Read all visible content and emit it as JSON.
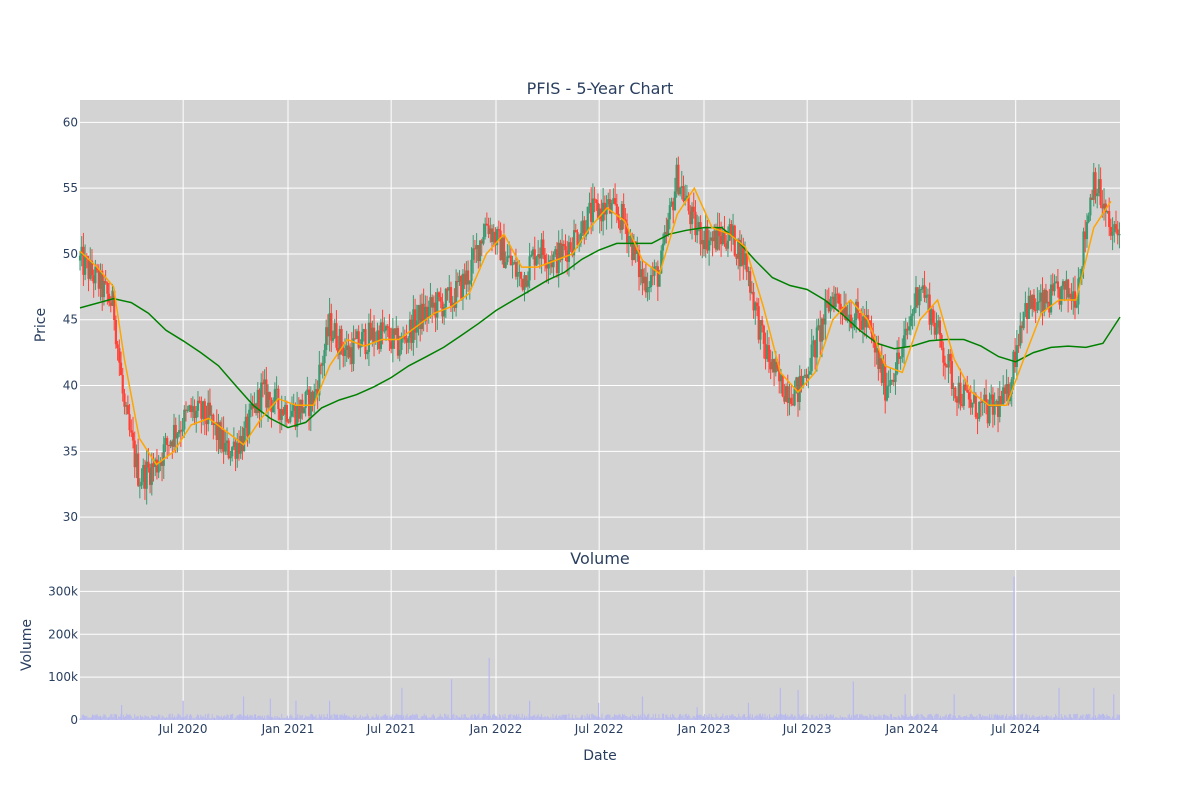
{
  "chart_data": [
    {
      "type": "candlestick",
      "title": "PFIS - 5-Year Chart",
      "ylabel": "Price",
      "ylim": [
        27.5,
        61.7
      ],
      "yticks": [
        30,
        35,
        40,
        45,
        50,
        55,
        60
      ],
      "background": "#d3d3d3",
      "grid": true,
      "colors": {
        "up": "#3d9970",
        "down": "#ff4136",
        "ma_short": "#ffa500",
        "ma_long": "#008000"
      },
      "close_approx": {
        "x": [
          "2020-01-02",
          "2020-02-01",
          "2020-03-01",
          "2020-03-20",
          "2020-04-15",
          "2020-05-15",
          "2020-06-15",
          "2020-07-15",
          "2020-08-15",
          "2020-09-15",
          "2020-10-15",
          "2020-11-15",
          "2020-12-15",
          "2021-01-15",
          "2021-02-15",
          "2021-03-15",
          "2021-04-15",
          "2021-05-15",
          "2021-06-15",
          "2021-07-15",
          "2021-08-15",
          "2021-09-15",
          "2021-10-15",
          "2021-11-15",
          "2021-12-15",
          "2022-01-15",
          "2022-02-15",
          "2022-03-15",
          "2022-04-15",
          "2022-05-15",
          "2022-06-15",
          "2022-07-15",
          "2022-08-15",
          "2022-09-15",
          "2022-10-15",
          "2022-11-15",
          "2022-12-15",
          "2023-01-15",
          "2023-02-15",
          "2023-03-15",
          "2023-04-15",
          "2023-05-15",
          "2023-06-15",
          "2023-07-15",
          "2023-08-15",
          "2023-09-15",
          "2023-10-15",
          "2023-11-15",
          "2023-12-15",
          "2024-01-15",
          "2024-02-15",
          "2024-03-15",
          "2024-04-15",
          "2024-05-15",
          "2024-06-15",
          "2024-07-15",
          "2024-08-15",
          "2024-09-15",
          "2024-10-15",
          "2024-11-15",
          "2024-12-15"
        ],
        "y": [
          49.5,
          48.0,
          46.0,
          38.0,
          33.0,
          34.0,
          36.5,
          38.0,
          37.5,
          35.0,
          36.0,
          39.5,
          38.5,
          38.0,
          39.0,
          44.5,
          42.5,
          43.5,
          44.0,
          43.0,
          45.0,
          46.0,
          46.5,
          48.5,
          52.5,
          50.0,
          48.0,
          50.5,
          49.5,
          51.0,
          53.0,
          53.5,
          52.5,
          48.0,
          48.5,
          56.0,
          52.0,
          51.0,
          51.5,
          49.5,
          43.0,
          40.0,
          39.5,
          43.0,
          47.0,
          45.5,
          44.5,
          40.0,
          42.5,
          48.0,
          44.0,
          40.0,
          38.5,
          38.0,
          39.0,
          46.0,
          46.0,
          47.0,
          47.0,
          56.0,
          51.5
        ]
      },
      "ma_short": {
        "x": [
          "2020-01-02",
          "2020-02-01",
          "2020-03-01",
          "2020-03-20",
          "2020-04-15",
          "2020-05-15",
          "2020-06-15",
          "2020-07-15",
          "2020-08-15",
          "2020-09-15",
          "2020-10-15",
          "2020-11-15",
          "2020-12-15",
          "2021-01-15",
          "2021-02-15",
          "2021-03-15",
          "2021-04-15",
          "2021-05-15",
          "2021-06-15",
          "2021-07-15",
          "2021-08-15",
          "2021-09-15",
          "2021-10-15",
          "2021-11-15",
          "2021-12-15",
          "2022-01-15",
          "2022-02-15",
          "2022-03-15",
          "2022-04-15",
          "2022-05-15",
          "2022-06-15",
          "2022-07-15",
          "2022-08-15",
          "2022-09-15",
          "2022-10-15",
          "2022-11-15",
          "2022-12-15",
          "2023-01-15",
          "2023-02-15",
          "2023-03-15",
          "2023-04-15",
          "2023-05-15",
          "2023-06-15",
          "2023-07-15",
          "2023-08-15",
          "2023-09-15",
          "2023-10-15",
          "2023-11-15",
          "2023-12-15",
          "2024-01-15",
          "2024-02-15",
          "2024-03-15",
          "2024-04-15",
          "2024-05-15",
          "2024-06-15",
          "2024-07-15",
          "2024-08-15",
          "2024-09-15",
          "2024-10-15",
          "2024-11-15",
          "2024-12-15"
        ],
        "y": [
          50.2,
          49.0,
          47.5,
          42.0,
          36.0,
          34.0,
          35.0,
          37.0,
          37.5,
          36.5,
          35.5,
          37.5,
          39.0,
          38.5,
          38.5,
          41.5,
          43.5,
          43.0,
          43.5,
          43.5,
          44.5,
          45.5,
          46.0,
          47.0,
          50.0,
          51.5,
          49.0,
          49.0,
          49.5,
          50.0,
          52.0,
          53.5,
          52.5,
          49.5,
          48.5,
          53.0,
          55.0,
          52.0,
          51.5,
          50.5,
          46.0,
          41.0,
          39.5,
          41.0,
          45.0,
          46.5,
          45.0,
          41.5,
          41.0,
          45.0,
          46.5,
          42.0,
          39.5,
          38.5,
          38.5,
          42.0,
          45.5,
          46.5,
          46.5,
          52.0,
          54.0
        ]
      },
      "ma_long": {
        "x": [
          "2020-01-02",
          "2020-03-01",
          "2020-04-01",
          "2020-05-01",
          "2020-06-01",
          "2020-07-01",
          "2020-08-01",
          "2020-09-01",
          "2020-10-01",
          "2020-11-01",
          "2020-12-01",
          "2021-01-01",
          "2021-02-01",
          "2021-03-01",
          "2021-04-01",
          "2021-05-01",
          "2021-06-01",
          "2021-07-01",
          "2021-08-01",
          "2021-09-01",
          "2021-10-01",
          "2021-11-01",
          "2021-12-01",
          "2022-01-01",
          "2022-02-01",
          "2022-03-01",
          "2022-04-01",
          "2022-05-01",
          "2022-06-01",
          "2022-07-01",
          "2022-08-01",
          "2022-09-01",
          "2022-10-01",
          "2022-11-01",
          "2022-12-01",
          "2023-01-01",
          "2023-02-01",
          "2023-03-01",
          "2023-04-01",
          "2023-05-01",
          "2023-06-01",
          "2023-07-01",
          "2023-08-01",
          "2023-09-01",
          "2023-10-01",
          "2023-11-01",
          "2023-12-01",
          "2024-01-01",
          "2024-02-01",
          "2024-03-01",
          "2024-04-01",
          "2024-05-01",
          "2024-06-01",
          "2024-07-01",
          "2024-08-01",
          "2024-09-01",
          "2024-10-01",
          "2024-11-01",
          "2024-12-01",
          "2024-12-31"
        ],
        "y": [
          45.9,
          46.6,
          46.3,
          45.5,
          44.2,
          43.4,
          42.5,
          41.5,
          40.0,
          38.5,
          37.5,
          36.8,
          37.2,
          38.3,
          38.9,
          39.3,
          39.9,
          40.6,
          41.5,
          42.2,
          42.9,
          43.8,
          44.7,
          45.7,
          46.5,
          47.2,
          48.0,
          48.6,
          49.6,
          50.3,
          50.8,
          50.8,
          50.8,
          51.5,
          51.8,
          52.0,
          52.0,
          51.0,
          49.5,
          48.2,
          47.6,
          47.3,
          46.5,
          45.4,
          44.2,
          43.2,
          42.8,
          43.0,
          43.4,
          43.5,
          43.5,
          43.0,
          42.2,
          41.8,
          42.5,
          42.9,
          43.0,
          42.9,
          43.2,
          45.2
        ]
      }
    },
    {
      "type": "bar",
      "title": "Volume",
      "ylabel": "Volume",
      "xlabel": "Date",
      "ylim": [
        0,
        350000
      ],
      "yticks": [
        0,
        100000,
        200000,
        300000
      ],
      "ytick_labels": [
        "0",
        "100k",
        "200k",
        "300k"
      ],
      "xticks": [
        "2020-07-01",
        "2021-01-01",
        "2021-07-01",
        "2022-01-01",
        "2022-07-01",
        "2023-01-01",
        "2023-07-01",
        "2024-01-01",
        "2024-07-01"
      ],
      "xtick_labels": [
        "Jul 2020",
        "Jan 2021",
        "Jul 2021",
        "Jan 2022",
        "Jul 2022",
        "Jan 2023",
        "Jul 2023",
        "Jan 2024",
        "Jul 2024"
      ],
      "xlim": [
        "2020-01-02",
        "2024-12-31"
      ],
      "color": "#b8b8f0",
      "typical_volume": 10000,
      "spikes": [
        {
          "x": "2020-03-15",
          "y": 35000
        },
        {
          "x": "2020-07-01",
          "y": 45000
        },
        {
          "x": "2020-10-15",
          "y": 55000
        },
        {
          "x": "2020-12-01",
          "y": 50000
        },
        {
          "x": "2021-01-15",
          "y": 45000
        },
        {
          "x": "2021-03-15",
          "y": 45000
        },
        {
          "x": "2021-07-20",
          "y": 75000
        },
        {
          "x": "2021-10-15",
          "y": 95000
        },
        {
          "x": "2021-12-20",
          "y": 145000
        },
        {
          "x": "2022-03-01",
          "y": 45000
        },
        {
          "x": "2022-06-30",
          "y": 40000
        },
        {
          "x": "2022-09-15",
          "y": 55000
        },
        {
          "x": "2022-12-20",
          "y": 30000
        },
        {
          "x": "2023-03-20",
          "y": 40000
        },
        {
          "x": "2023-05-15",
          "y": 75000
        },
        {
          "x": "2023-06-15",
          "y": 70000
        },
        {
          "x": "2023-09-20",
          "y": 90000
        },
        {
          "x": "2023-12-20",
          "y": 60000
        },
        {
          "x": "2024-03-15",
          "y": 60000
        },
        {
          "x": "2024-06-28",
          "y": 335000
        },
        {
          "x": "2024-09-15",
          "y": 75000
        },
        {
          "x": "2024-11-15",
          "y": 75000
        },
        {
          "x": "2024-12-20",
          "y": 60000
        }
      ]
    }
  ]
}
